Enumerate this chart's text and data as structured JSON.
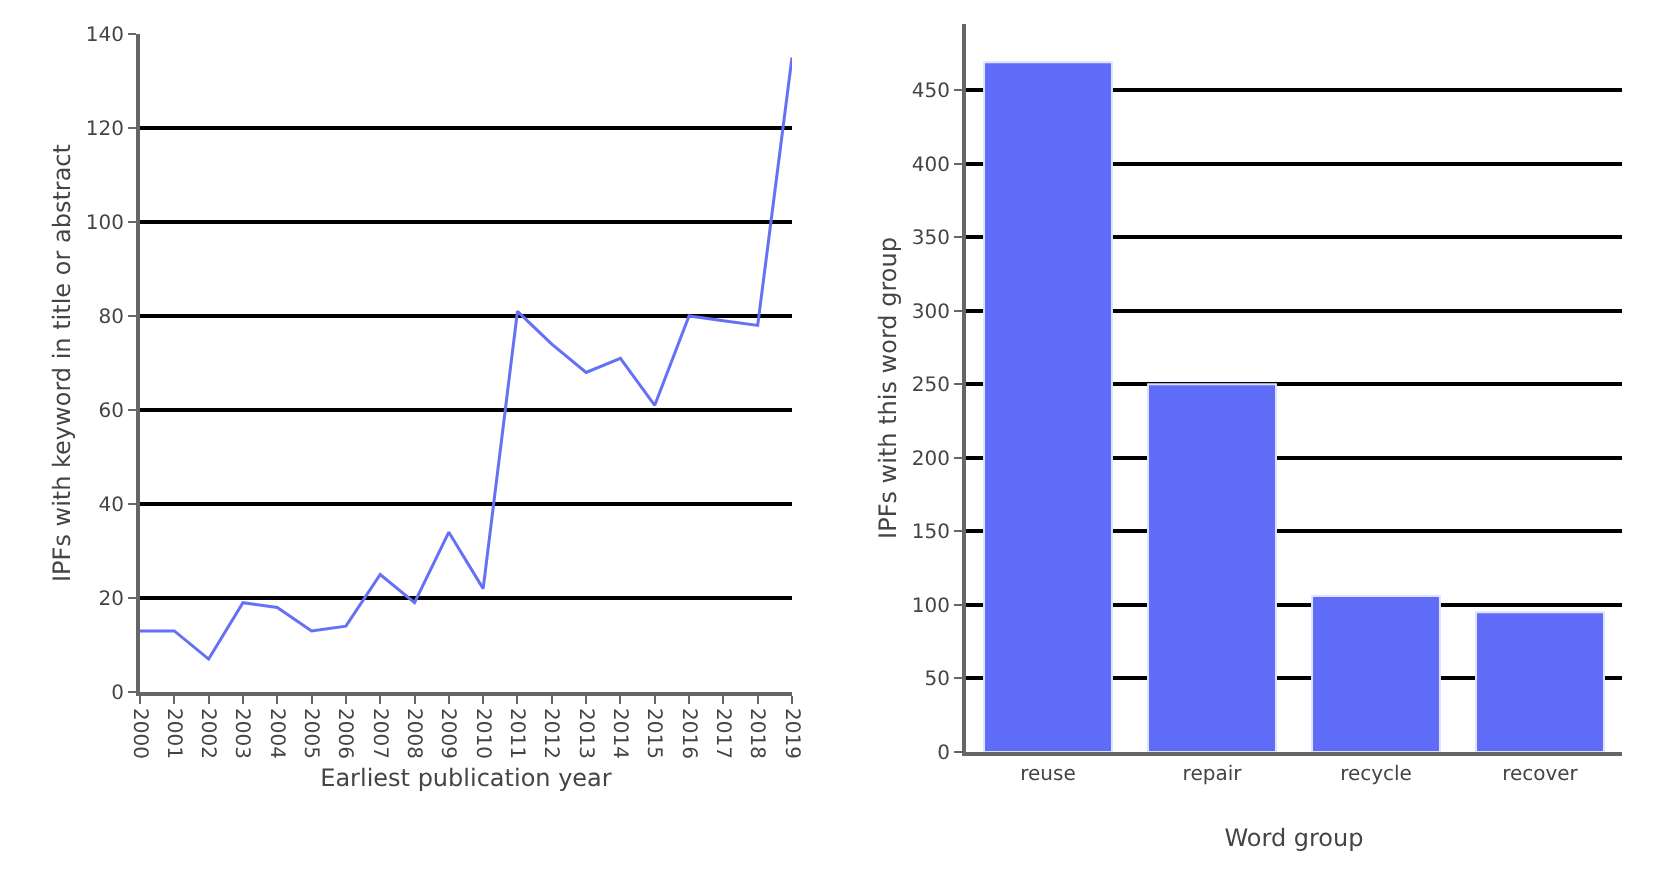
{
  "chart_data": [
    {
      "type": "line",
      "xlabel": "Earliest publication year",
      "ylabel": "IPFs with keyword in title or abstract",
      "x": [
        2000,
        2001,
        2002,
        2003,
        2004,
        2005,
        2006,
        2007,
        2008,
        2009,
        2010,
        2011,
        2012,
        2013,
        2014,
        2015,
        2016,
        2017,
        2018,
        2019
      ],
      "series": [
        {
          "color": "#6470f5",
          "values": [
            13,
            13,
            7,
            19,
            18,
            13,
            14,
            25,
            19,
            34,
            22,
            81,
            74,
            68,
            71,
            61,
            80,
            79,
            78,
            135
          ]
        }
      ],
      "xlim": [
        2000,
        2019
      ],
      "xticks": [
        2000,
        2001,
        2002,
        2003,
        2004,
        2005,
        2006,
        2007,
        2008,
        2009,
        2010,
        2011,
        2012,
        2013,
        2014,
        2015,
        2016,
        2017,
        2018,
        2019
      ],
      "ylim": [
        0,
        140
      ],
      "yticks": [
        0,
        20,
        40,
        60,
        80,
        100,
        120,
        140
      ],
      "grid": "y",
      "legend": false,
      "marker": "none",
      "line_style": "solid"
    },
    {
      "type": "bar",
      "xlabel": "Word group",
      "ylabel": "IPFs with this word group",
      "categories": [
        "reuse",
        "repair",
        "recycle",
        "recover"
      ],
      "series": [
        {
          "color": "#5f6cf7",
          "values": [
            469,
            250,
            106,
            95
          ]
        }
      ],
      "ylim": [
        0,
        495
      ],
      "yticks": [
        0,
        50,
        100,
        150,
        200,
        250,
        300,
        350,
        400,
        450
      ],
      "grid": "y",
      "legend": false
    }
  ]
}
